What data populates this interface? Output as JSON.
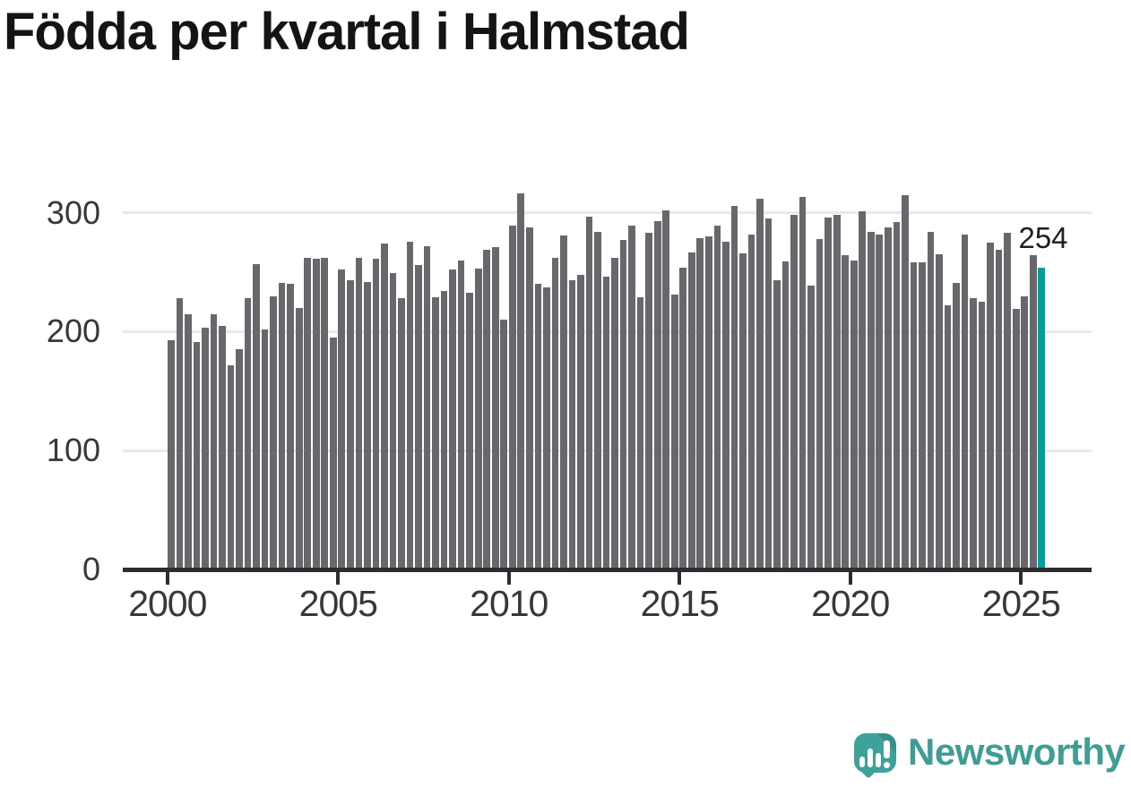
{
  "title": "Födda per kvartal i Halmstad",
  "chart_data": {
    "type": "bar",
    "title": "Födda per kvartal i Halmstad",
    "xlabel": "",
    "ylabel": "",
    "grid": "horizontal",
    "legend": "none",
    "ylim": [
      0,
      330
    ],
    "y_ticks": [
      0,
      100,
      200,
      300
    ],
    "x_ticks": [
      2000,
      2005,
      2010,
      2015,
      2020,
      2025
    ],
    "bar_color": "#6a676c",
    "grid_color": "#eae8ea",
    "axis_color": "#2e2c2f",
    "categories": [
      "2000 Q1",
      "2000 Q2",
      "2000 Q3",
      "2000 Q4",
      "2001 Q1",
      "2001 Q2",
      "2001 Q3",
      "2001 Q4",
      "2002 Q1",
      "2002 Q2",
      "2002 Q3",
      "2002 Q4",
      "2003 Q1",
      "2003 Q2",
      "2003 Q3",
      "2003 Q4",
      "2004 Q1",
      "2004 Q2",
      "2004 Q3",
      "2004 Q4",
      "2005 Q1",
      "2005 Q2",
      "2005 Q3",
      "2005 Q4",
      "2006 Q1",
      "2006 Q2",
      "2006 Q3",
      "2006 Q4",
      "2007 Q1",
      "2007 Q2",
      "2007 Q3",
      "2007 Q4",
      "2008 Q1",
      "2008 Q2",
      "2008 Q3",
      "2008 Q4",
      "2009 Q1",
      "2009 Q2",
      "2009 Q3",
      "2009 Q4",
      "2010 Q1",
      "2010 Q2",
      "2010 Q3",
      "2010 Q4",
      "2011 Q1",
      "2011 Q2",
      "2011 Q3",
      "2011 Q4",
      "2012 Q1",
      "2012 Q2",
      "2012 Q3",
      "2012 Q4",
      "2013 Q1",
      "2013 Q2",
      "2013 Q3",
      "2013 Q4",
      "2014 Q1",
      "2014 Q2",
      "2014 Q3",
      "2014 Q4",
      "2015 Q1",
      "2015 Q2",
      "2015 Q3",
      "2015 Q4",
      "2016 Q1",
      "2016 Q2",
      "2016 Q3",
      "2016 Q4",
      "2017 Q1",
      "2017 Q2",
      "2017 Q3",
      "2017 Q4",
      "2018 Q1",
      "2018 Q2",
      "2018 Q3",
      "2018 Q4",
      "2019 Q1",
      "2019 Q2",
      "2019 Q3",
      "2019 Q4",
      "2020 Q1",
      "2020 Q2",
      "2020 Q3",
      "2020 Q4",
      "2021 Q1",
      "2021 Q2",
      "2021 Q3",
      "2021 Q4",
      "2022 Q1",
      "2022 Q2",
      "2022 Q3",
      "2022 Q4",
      "2023 Q1",
      "2023 Q2",
      "2023 Q3",
      "2023 Q4",
      "2024 Q1",
      "2024 Q2",
      "2024 Q3",
      "2024 Q4",
      "2025 Q1",
      "2025 Q2",
      "2025 Q3"
    ],
    "values": [
      193,
      228,
      215,
      191,
      203,
      215,
      205,
      172,
      185,
      228,
      257,
      202,
      230,
      241,
      240,
      220,
      262,
      261,
      262,
      195,
      252,
      243,
      262,
      242,
      261,
      274,
      249,
      228,
      276,
      256,
      272,
      229,
      234,
      252,
      260,
      233,
      253,
      269,
      271,
      210,
      289,
      316,
      288,
      240,
      237,
      262,
      281,
      243,
      248,
      297,
      284,
      246,
      262,
      277,
      289,
      229,
      283,
      293,
      302,
      231,
      254,
      267,
      279,
      280,
      289,
      276,
      306,
      266,
      282,
      312,
      295,
      243,
      259,
      298,
      313,
      239,
      278,
      296,
      298,
      264,
      260,
      301,
      284,
      282,
      288,
      292,
      315,
      258,
      258,
      284,
      265,
      222,
      241,
      282,
      228,
      225,
      275,
      269,
      283,
      219,
      230,
      264,
      254
    ],
    "highlight": {
      "index": 102,
      "category": "2025 Q3",
      "value": 254,
      "label": "254",
      "color": "#00a09a"
    }
  },
  "footer": {
    "brand": "Newsworthy",
    "mark_color": "#3ea29b",
    "text_color": "#3f9d98"
  }
}
